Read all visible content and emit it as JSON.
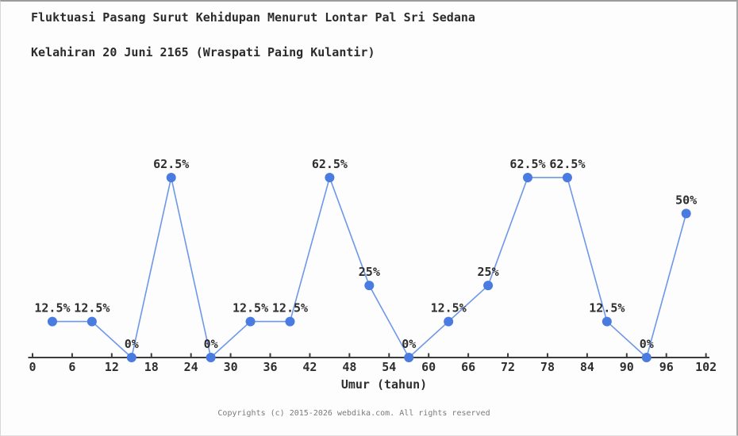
{
  "header": {
    "title_lines": [
      "Fluktuasi Pasang Surut Kehidupan Menurut Lontar Pal Sri Sedana",
      "Kelahiran 20 Juni 2165 (Wraspati Paing Kulantir)"
    ]
  },
  "chart_data": {
    "type": "line",
    "title": "Fluktuasi Pasang Surut Kehidupan Menurut Lontar Pal Sri Sedana Kelahiran 20 Juni 2165 (Wraspati Paing Kulantir)",
    "xlabel": "Umur (tahun)",
    "ylabel": "",
    "x": [
      3,
      9,
      15,
      21,
      27,
      33,
      39,
      45,
      51,
      57,
      63,
      69,
      75,
      81,
      87,
      93,
      99
    ],
    "values": [
      12.5,
      12.5,
      0,
      62.5,
      0,
      12.5,
      12.5,
      62.5,
      25,
      0,
      12.5,
      25,
      62.5,
      62.5,
      12.5,
      0,
      50
    ],
    "point_labels": [
      "12.5%",
      "12.5%",
      "0%",
      "62.5%",
      "0%",
      "12.5%",
      "12.5%",
      "62.5%",
      "25%",
      "0%",
      "12.5%",
      "25%",
      "62.5%",
      "62.5%",
      "12.5%",
      "0%",
      "50%"
    ],
    "x_ticks": [
      0,
      6,
      12,
      18,
      24,
      30,
      36,
      42,
      48,
      54,
      60,
      66,
      72,
      78,
      84,
      90,
      96,
      102
    ],
    "xlim": [
      0,
      102
    ],
    "ylim": [
      0,
      70
    ],
    "grid": false,
    "legend_position": "none",
    "line_color": "#6d97e8",
    "marker_color": "#4a7be0",
    "axis_color": "#3c3c3c",
    "label_color": "#2e2e2e"
  },
  "footer": {
    "copyright": "Copyrights (c) 2015-2026 webdika.com. All rights reserved"
  }
}
